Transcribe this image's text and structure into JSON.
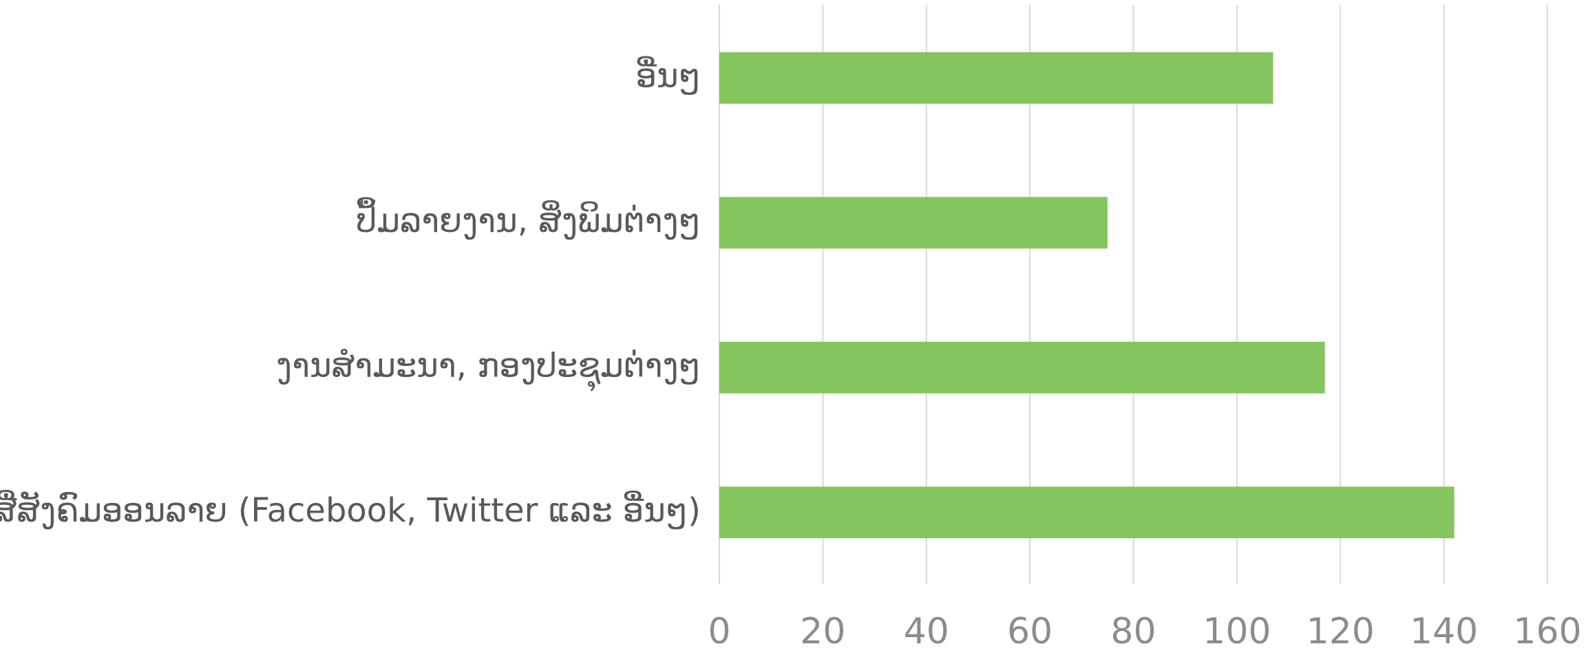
{
  "chart_data": {
    "type": "hbar",
    "categories": [
      "ອື່ນໆ",
      "ປຶ້ມລາຍງານ, ສິ່ງພິມຕ່າງໆ",
      "ງານສໍາມະນາ, ກອງປະຊຸມຕ່າງໆ",
      "ສື່ສັງຄົມອອນລາຍ (Facebook, Twitter ແລະ ອື່ນໆ)"
    ],
    "values": [
      107,
      75,
      117,
      142
    ],
    "color": "#84c55e",
    "xlim": [
      0,
      160
    ],
    "xticks": [
      0,
      20,
      40,
      60,
      80,
      100,
      120,
      140,
      160
    ],
    "grid": true
  }
}
